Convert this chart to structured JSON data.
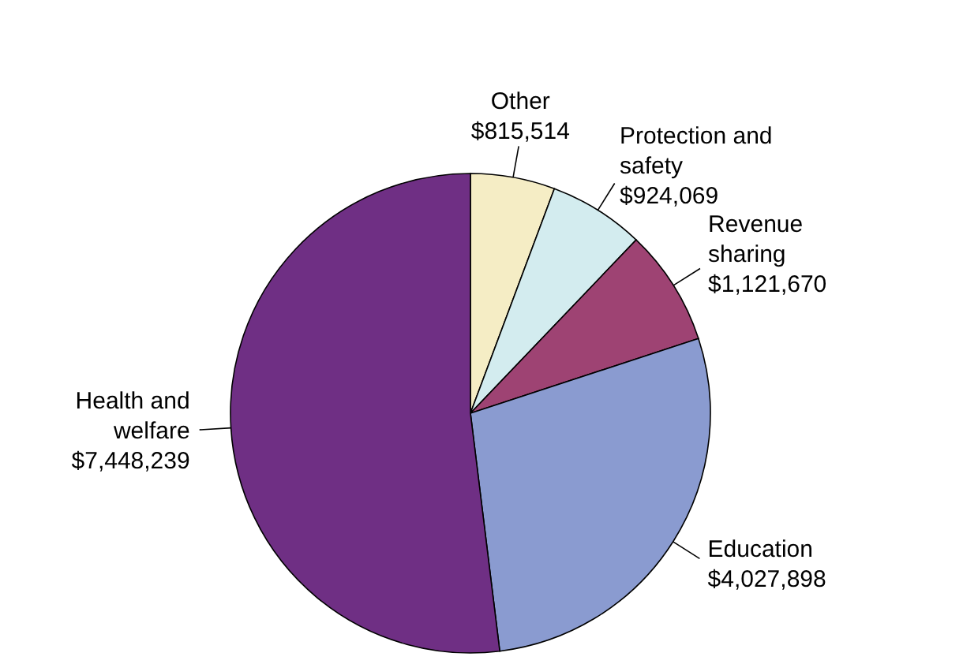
{
  "chart_data": {
    "type": "pie",
    "categories": [
      "Other",
      "Protection and safety",
      "Revenue sharing",
      "Education",
      "Health and welfare"
    ],
    "values": [
      815514,
      924069,
      1121670,
      4027898,
      7448239
    ],
    "value_labels": [
      "$815,514",
      "$924,069",
      "$1,121,670",
      "$4,027,898",
      "$7,448,239"
    ],
    "colors": [
      "#f5edc5",
      "#d3ecef",
      "#9e4373",
      "#8a9bd0",
      "#6f2f84"
    ]
  }
}
